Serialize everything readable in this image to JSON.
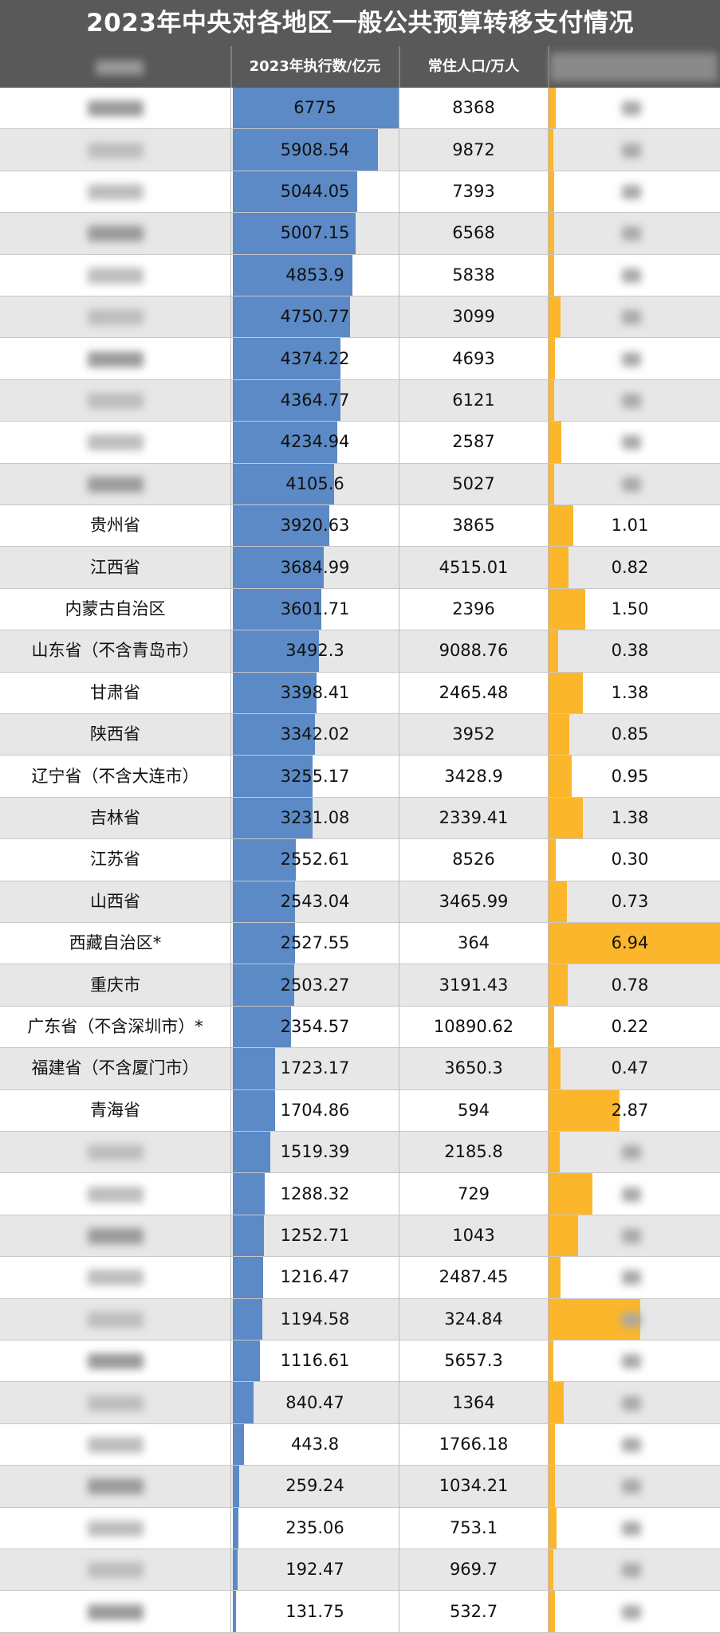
{
  "title": "2023年中央对各地区一般公共预算转移支付情况",
  "columns": [
    "",
    "2023年执行数/亿元",
    "常住人口/万人",
    ""
  ],
  "colors": {
    "header_bg": "#595959",
    "blue_bar": "#5b8ac6",
    "gold_bar": "#fbb62c",
    "alt_row": "#e7e7e7"
  },
  "chart_data": {
    "type": "table",
    "title": "2023年中央对各地区一般公共预算转移支付情况",
    "columns": [
      "",
      "2023年执行数/亿元",
      "常住人口/万人",
      ""
    ],
    "rows": [
      {
        "region": "",
        "amount": "6775",
        "population": "8368",
        "ratio": ""
      },
      {
        "region": "",
        "amount": "5908.54",
        "population": "9872",
        "ratio": ""
      },
      {
        "region": "",
        "amount": "5044.05",
        "population": "7393",
        "ratio": ""
      },
      {
        "region": "",
        "amount": "5007.15",
        "population": "6568",
        "ratio": ""
      },
      {
        "region": "",
        "amount": "4853.9",
        "population": "5838",
        "ratio": ""
      },
      {
        "region": "",
        "amount": "4750.77",
        "population": "3099",
        "ratio": ""
      },
      {
        "region": "",
        "amount": "4374.22",
        "population": "4693",
        "ratio": ""
      },
      {
        "region": "",
        "amount": "4364.77",
        "population": "6121",
        "ratio": ""
      },
      {
        "region": "",
        "amount": "4234.94",
        "population": "2587",
        "ratio": ""
      },
      {
        "region": "",
        "amount": "4105.6",
        "population": "5027",
        "ratio": ""
      },
      {
        "region": "贵州省",
        "amount": "3920.63",
        "population": "3865",
        "ratio": "1.01"
      },
      {
        "region": "江西省",
        "amount": "3684.99",
        "population": "4515.01",
        "ratio": "0.82"
      },
      {
        "region": "内蒙古自治区",
        "amount": "3601.71",
        "population": "2396",
        "ratio": "1.50"
      },
      {
        "region": "山东省（不含青岛市）",
        "amount": "3492.3",
        "population": "9088.76",
        "ratio": "0.38"
      },
      {
        "region": "甘肃省",
        "amount": "3398.41",
        "population": "2465.48",
        "ratio": "1.38"
      },
      {
        "region": "陕西省",
        "amount": "3342.02",
        "population": "3952",
        "ratio": "0.85"
      },
      {
        "region": "辽宁省（不含大连市）",
        "amount": "3255.17",
        "population": "3428.9",
        "ratio": "0.95"
      },
      {
        "region": "吉林省",
        "amount": "3231.08",
        "population": "2339.41",
        "ratio": "1.38"
      },
      {
        "region": "江苏省",
        "amount": "2552.61",
        "population": "8526",
        "ratio": "0.30"
      },
      {
        "region": "山西省",
        "amount": "2543.04",
        "population": "3465.99",
        "ratio": "0.73"
      },
      {
        "region": "西藏自治区*",
        "amount": "2527.55",
        "population": "364",
        "ratio": "6.94"
      },
      {
        "region": "重庆市",
        "amount": "2503.27",
        "population": "3191.43",
        "ratio": "0.78"
      },
      {
        "region": "广东省（不含深圳市）*",
        "amount": "2354.57",
        "population": "10890.62",
        "ratio": "0.22"
      },
      {
        "region": "福建省（不含厦门市）",
        "amount": "1723.17",
        "population": "3650.3",
        "ratio": "0.47"
      },
      {
        "region": "青海省",
        "amount": "1704.86",
        "population": "594",
        "ratio": "2.87"
      },
      {
        "region": "",
        "amount": "1519.39",
        "population": "2185.8",
        "ratio": ""
      },
      {
        "region": "",
        "amount": "1288.32",
        "population": "729",
        "ratio": ""
      },
      {
        "region": "",
        "amount": "1252.71",
        "population": "1043",
        "ratio": ""
      },
      {
        "region": "",
        "amount": "1216.47",
        "population": "2487.45",
        "ratio": ""
      },
      {
        "region": "",
        "amount": "1194.58",
        "population": "324.84",
        "ratio": ""
      },
      {
        "region": "",
        "amount": "1116.61",
        "population": "5657.3",
        "ratio": ""
      },
      {
        "region": "",
        "amount": "840.47",
        "population": "1364",
        "ratio": ""
      },
      {
        "region": "",
        "amount": "443.8",
        "population": "1766.18",
        "ratio": ""
      },
      {
        "region": "",
        "amount": "259.24",
        "population": "1034.21",
        "ratio": ""
      },
      {
        "region": "",
        "amount": "235.06",
        "population": "753.1",
        "ratio": ""
      },
      {
        "region": "",
        "amount": "192.47",
        "population": "969.7",
        "ratio": ""
      },
      {
        "region": "",
        "amount": "131.75",
        "population": "532.7",
        "ratio": ""
      }
    ],
    "gold_ratio": [
      0.3,
      0.2,
      0.22,
      0.22,
      0.24,
      0.48,
      0.27,
      0.22,
      0.52,
      0.24,
      1.01,
      0.82,
      1.5,
      0.38,
      1.38,
      0.85,
      0.95,
      1.38,
      0.3,
      0.73,
      6.94,
      0.78,
      0.22,
      0.47,
      2.87,
      0.44,
      1.77,
      1.2,
      0.49,
      3.7,
      0.2,
      0.62,
      0.25,
      0.25,
      0.31,
      0.2,
      0.25
    ]
  }
}
